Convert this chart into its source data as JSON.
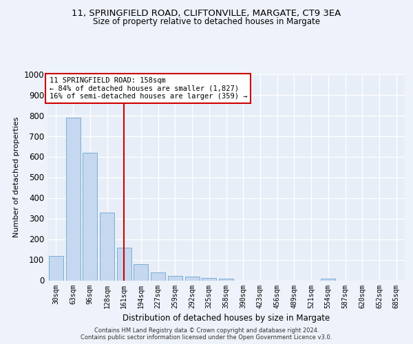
{
  "title1": "11, SPRINGFIELD ROAD, CLIFTONVILLE, MARGATE, CT9 3EA",
  "title2": "Size of property relative to detached houses in Margate",
  "xlabel": "Distribution of detached houses by size in Margate",
  "ylabel": "Number of detached properties",
  "categories": [
    "30sqm",
    "63sqm",
    "96sqm",
    "128sqm",
    "161sqm",
    "194sqm",
    "227sqm",
    "259sqm",
    "292sqm",
    "325sqm",
    "358sqm",
    "390sqm",
    "423sqm",
    "456sqm",
    "489sqm",
    "521sqm",
    "554sqm",
    "587sqm",
    "620sqm",
    "652sqm",
    "685sqm"
  ],
  "values": [
    120,
    790,
    620,
    330,
    158,
    80,
    38,
    22,
    18,
    12,
    10,
    0,
    0,
    0,
    0,
    0,
    10,
    0,
    0,
    0,
    0
  ],
  "bar_color": "#c5d8ef",
  "bar_edge_color": "#7aadd4",
  "vline_x": 4,
  "vline_color": "#cc0000",
  "annotation_text": "11 SPRINGFIELD ROAD: 158sqm\n← 84% of detached houses are smaller (1,827)\n16% of semi-detached houses are larger (359) →",
  "annotation_box_color": "white",
  "annotation_box_edge": "#cc0000",
  "ylim": [
    0,
    1000
  ],
  "yticks": [
    0,
    100,
    200,
    300,
    400,
    500,
    600,
    700,
    800,
    900,
    1000
  ],
  "footer": "Contains HM Land Registry data © Crown copyright and database right 2024.\nContains public sector information licensed under the Open Government Licence v3.0.",
  "bg_color": "#eef2fa",
  "plot_bg_color": "#e8eef8",
  "grid_color": "#ffffff"
}
